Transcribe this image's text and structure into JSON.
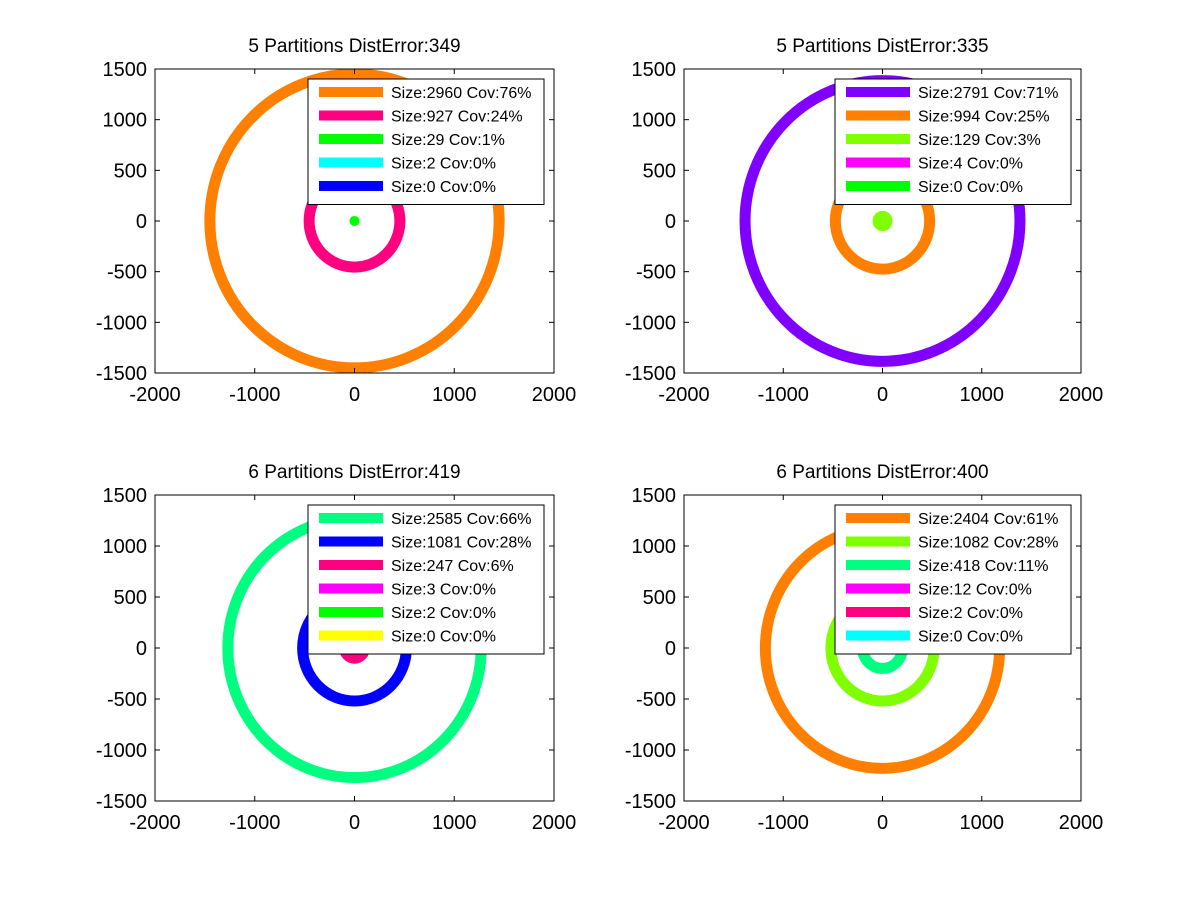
{
  "chart_data": [
    {
      "type": "scatter",
      "title": "5 Partitions DistError:349",
      "xlim": [
        -2000,
        2000
      ],
      "ylim": [
        -1500,
        1500
      ],
      "xticks": [
        -2000,
        -1000,
        0,
        1000,
        2000
      ],
      "yticks": [
        -1500,
        -1000,
        -500,
        0,
        500,
        1000,
        1500
      ],
      "legend_position": "top-right",
      "series": [
        {
          "label": "Size:2960 Cov:76%",
          "color": "#ff7f00",
          "shape": "ring",
          "center": [
            0,
            0
          ],
          "r": 1450
        },
        {
          "label": "Size:927 Cov:24%",
          "color": "#ff0080",
          "shape": "ring",
          "center": [
            0,
            0
          ],
          "r": 455
        },
        {
          "label": "Size:29 Cov:1%",
          "color": "#00ff00",
          "shape": "blob",
          "center": [
            0,
            0
          ],
          "r": 40
        },
        {
          "label": "Size:2 Cov:0%",
          "color": "#00ffff",
          "shape": "none"
        },
        {
          "label": "Size:0 Cov:0%",
          "color": "#0000ff",
          "shape": "none"
        }
      ]
    },
    {
      "type": "scatter",
      "title": "5 Partitions DistError:335",
      "xlim": [
        -2000,
        2000
      ],
      "ylim": [
        -1500,
        1500
      ],
      "xticks": [
        -2000,
        -1000,
        0,
        1000,
        2000
      ],
      "yticks": [
        -1500,
        -1000,
        -500,
        0,
        500,
        1000,
        1500
      ],
      "legend_position": "top-right",
      "series": [
        {
          "label": "Size:2791 Cov:71%",
          "color": "#8000ff",
          "shape": "ring",
          "center": [
            0,
            0
          ],
          "r": 1385
        },
        {
          "label": "Size:994 Cov:25%",
          "color": "#ff7f00",
          "shape": "ring",
          "center": [
            0,
            0
          ],
          "r": 475
        },
        {
          "label": "Size:129 Cov:3%",
          "color": "#80ff00",
          "shape": "blob",
          "center": [
            0,
            0
          ],
          "r": 90
        },
        {
          "label": "Size:4 Cov:0%",
          "color": "#ff00ff",
          "shape": "none"
        },
        {
          "label": "Size:0 Cov:0%",
          "color": "#00ff00",
          "shape": "none"
        }
      ]
    },
    {
      "type": "scatter",
      "title": "6 Partitions DistError:419",
      "xlim": [
        -2000,
        2000
      ],
      "ylim": [
        -1500,
        1500
      ],
      "xticks": [
        -2000,
        -1000,
        0,
        1000,
        2000
      ],
      "yticks": [
        -1500,
        -1000,
        -500,
        0,
        500,
        1000,
        1500
      ],
      "legend_position": "top-right",
      "series": [
        {
          "label": "Size:2585 Cov:66%",
          "color": "#00ff80",
          "shape": "ring",
          "center": [
            0,
            0
          ],
          "r": 1270
        },
        {
          "label": "Size:1081 Cov:28%",
          "color": "#0000ff",
          "shape": "ring",
          "center": [
            0,
            0
          ],
          "r": 520
        },
        {
          "label": "Size:247 Cov:6%",
          "color": "#ff0080",
          "shape": "ring",
          "center": [
            0,
            0
          ],
          "r": 100
        },
        {
          "label": "Size:3 Cov:0%",
          "color": "#ff00ff",
          "shape": "none"
        },
        {
          "label": "Size:2 Cov:0%",
          "color": "#00ff00",
          "shape": "none"
        },
        {
          "label": "Size:0 Cov:0%",
          "color": "#ffff00",
          "shape": "none"
        }
      ]
    },
    {
      "type": "scatter",
      "title": "6 Partitions DistError:400",
      "xlim": [
        -2000,
        2000
      ],
      "ylim": [
        -1500,
        1500
      ],
      "xticks": [
        -2000,
        -1000,
        0,
        1000,
        2000
      ],
      "yticks": [
        -1500,
        -1000,
        -500,
        0,
        500,
        1000,
        1500
      ],
      "legend_position": "top-right",
      "series": [
        {
          "label": "Size:2404 Cov:61%",
          "color": "#ff7f00",
          "shape": "ring",
          "center": [
            0,
            0
          ],
          "r": 1180
        },
        {
          "label": "Size:1082 Cov:28%",
          "color": "#80ff00",
          "shape": "ring",
          "center": [
            0,
            0
          ],
          "r": 520
        },
        {
          "label": "Size:418 Cov:11%",
          "color": "#00ff80",
          "shape": "ring",
          "center": [
            0,
            0
          ],
          "r": 200
        },
        {
          "label": "Size:12 Cov:0%",
          "color": "#ff00ff",
          "shape": "blob",
          "center": [
            0,
            0
          ],
          "r": 20
        },
        {
          "label": "Size:2 Cov:0%",
          "color": "#ff0080",
          "shape": "none"
        },
        {
          "label": "Size:0 Cov:0%",
          "color": "#00ffff",
          "shape": "none"
        }
      ]
    }
  ]
}
